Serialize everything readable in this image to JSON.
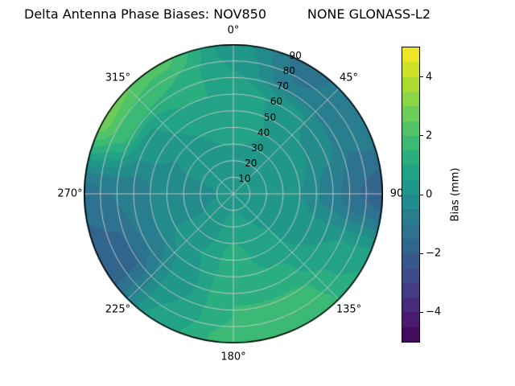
{
  "chart_data": {
    "type": "heatmap",
    "projection": "polar",
    "title": "Delta Antenna Phase Biases: NOV850          NONE GLONASS-L2",
    "colorbar": {
      "label": "Bias (mm)",
      "vmin": -5,
      "vmax": 5,
      "level_step": 0.5,
      "ticks": [
        {
          "value": 4,
          "label": "4"
        },
        {
          "value": 2,
          "label": "2"
        },
        {
          "value": 0,
          "label": "0"
        },
        {
          "value": -2,
          "label": "−2"
        },
        {
          "value": -4,
          "label": "−4"
        }
      ]
    },
    "theta_ticks": [
      {
        "angle": 0,
        "label": "0°"
      },
      {
        "angle": 45,
        "label": "45°"
      },
      {
        "angle": 90,
        "label": "90"
      },
      {
        "angle": 135,
        "label": "135°"
      },
      {
        "angle": 180,
        "label": "180°"
      },
      {
        "angle": 225,
        "label": "225°"
      },
      {
        "angle": 270,
        "label": "270°"
      },
      {
        "angle": 315,
        "label": "315°"
      }
    ],
    "r_ticks": [
      10,
      20,
      30,
      40,
      50,
      60,
      70,
      80,
      90
    ],
    "r_max": 90,
    "r_label_angle": 22.5,
    "grid": true,
    "colormap": "viridis",
    "colormap_stops": [
      "#440154",
      "#482475",
      "#414487",
      "#355f8d",
      "#2a788e",
      "#21918c",
      "#22a884",
      "#44bf70",
      "#7ad151",
      "#bddf26",
      "#fde725"
    ],
    "grid_color": "#c9c9c9",
    "azimuth_deg": [
      0,
      30,
      60,
      90,
      120,
      150,
      180,
      210,
      240,
      270,
      300,
      330
    ],
    "radius_deg": [
      0,
      20,
      40,
      60,
      75,
      90
    ],
    "bias_mm": [
      [
        0.2,
        0.2,
        0.2,
        0.2,
        0.2,
        0.2,
        0.2,
        0.2,
        0.2,
        0.2,
        0.2,
        0.2
      ],
      [
        0.3,
        0.3,
        0.2,
        0.1,
        0.2,
        0.5,
        0.8,
        0.3,
        0.0,
        -0.2,
        0.1,
        0.3
      ],
      [
        0.8,
        0.5,
        0.2,
        0.0,
        0.3,
        0.8,
        1.2,
        0.5,
        0.0,
        -0.3,
        0.0,
        0.5
      ],
      [
        1.0,
        0.3,
        -0.3,
        -0.8,
        0.5,
        1.2,
        1.5,
        0.3,
        -1.0,
        -0.8,
        0.3,
        1.0
      ],
      [
        0.5,
        -1.0,
        -0.8,
        -1.5,
        0.8,
        1.8,
        1.5,
        0.5,
        -1.8,
        -1.0,
        1.8,
        1.5
      ],
      [
        0.2,
        -1.2,
        -0.5,
        -1.8,
        1.0,
        2.0,
        1.8,
        0.8,
        -2.0,
        -1.2,
        2.8,
        2.2
      ]
    ]
  }
}
